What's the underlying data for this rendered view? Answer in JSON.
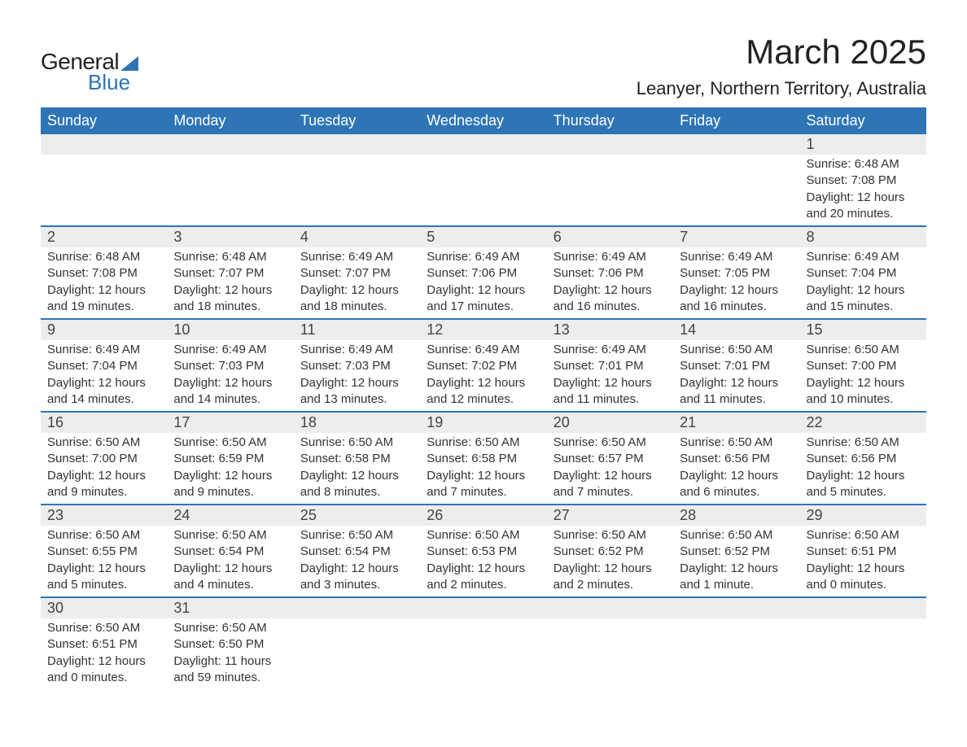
{
  "logo": {
    "word1": "General",
    "word2": "Blue"
  },
  "title": "March 2025",
  "location": "Leanyer, Northern Territory, Australia",
  "colors": {
    "header_bg": "#2e75b6",
    "header_text": "#ffffff",
    "daynum_bg": "#ededed",
    "row_divider": "#2e75b6",
    "text": "#333333",
    "logo_accent": "#2e75b6"
  },
  "weekdays": [
    "Sunday",
    "Monday",
    "Tuesday",
    "Wednesday",
    "Thursday",
    "Friday",
    "Saturday"
  ],
  "weeks": [
    [
      null,
      null,
      null,
      null,
      null,
      null,
      {
        "n": "1",
        "sr": "6:48 AM",
        "ss": "7:08 PM",
        "dl": "12 hours and 20 minutes."
      }
    ],
    [
      {
        "n": "2",
        "sr": "6:48 AM",
        "ss": "7:08 PM",
        "dl": "12 hours and 19 minutes."
      },
      {
        "n": "3",
        "sr": "6:48 AM",
        "ss": "7:07 PM",
        "dl": "12 hours and 18 minutes."
      },
      {
        "n": "4",
        "sr": "6:49 AM",
        "ss": "7:07 PM",
        "dl": "12 hours and 18 minutes."
      },
      {
        "n": "5",
        "sr": "6:49 AM",
        "ss": "7:06 PM",
        "dl": "12 hours and 17 minutes."
      },
      {
        "n": "6",
        "sr": "6:49 AM",
        "ss": "7:06 PM",
        "dl": "12 hours and 16 minutes."
      },
      {
        "n": "7",
        "sr": "6:49 AM",
        "ss": "7:05 PM",
        "dl": "12 hours and 16 minutes."
      },
      {
        "n": "8",
        "sr": "6:49 AM",
        "ss": "7:04 PM",
        "dl": "12 hours and 15 minutes."
      }
    ],
    [
      {
        "n": "9",
        "sr": "6:49 AM",
        "ss": "7:04 PM",
        "dl": "12 hours and 14 minutes."
      },
      {
        "n": "10",
        "sr": "6:49 AM",
        "ss": "7:03 PM",
        "dl": "12 hours and 14 minutes."
      },
      {
        "n": "11",
        "sr": "6:49 AM",
        "ss": "7:03 PM",
        "dl": "12 hours and 13 minutes."
      },
      {
        "n": "12",
        "sr": "6:49 AM",
        "ss": "7:02 PM",
        "dl": "12 hours and 12 minutes."
      },
      {
        "n": "13",
        "sr": "6:49 AM",
        "ss": "7:01 PM",
        "dl": "12 hours and 11 minutes."
      },
      {
        "n": "14",
        "sr": "6:50 AM",
        "ss": "7:01 PM",
        "dl": "12 hours and 11 minutes."
      },
      {
        "n": "15",
        "sr": "6:50 AM",
        "ss": "7:00 PM",
        "dl": "12 hours and 10 minutes."
      }
    ],
    [
      {
        "n": "16",
        "sr": "6:50 AM",
        "ss": "7:00 PM",
        "dl": "12 hours and 9 minutes."
      },
      {
        "n": "17",
        "sr": "6:50 AM",
        "ss": "6:59 PM",
        "dl": "12 hours and 9 minutes."
      },
      {
        "n": "18",
        "sr": "6:50 AM",
        "ss": "6:58 PM",
        "dl": "12 hours and 8 minutes."
      },
      {
        "n": "19",
        "sr": "6:50 AM",
        "ss": "6:58 PM",
        "dl": "12 hours and 7 minutes."
      },
      {
        "n": "20",
        "sr": "6:50 AM",
        "ss": "6:57 PM",
        "dl": "12 hours and 7 minutes."
      },
      {
        "n": "21",
        "sr": "6:50 AM",
        "ss": "6:56 PM",
        "dl": "12 hours and 6 minutes."
      },
      {
        "n": "22",
        "sr": "6:50 AM",
        "ss": "6:56 PM",
        "dl": "12 hours and 5 minutes."
      }
    ],
    [
      {
        "n": "23",
        "sr": "6:50 AM",
        "ss": "6:55 PM",
        "dl": "12 hours and 5 minutes."
      },
      {
        "n": "24",
        "sr": "6:50 AM",
        "ss": "6:54 PM",
        "dl": "12 hours and 4 minutes."
      },
      {
        "n": "25",
        "sr": "6:50 AM",
        "ss": "6:54 PM",
        "dl": "12 hours and 3 minutes."
      },
      {
        "n": "26",
        "sr": "6:50 AM",
        "ss": "6:53 PM",
        "dl": "12 hours and 2 minutes."
      },
      {
        "n": "27",
        "sr": "6:50 AM",
        "ss": "6:52 PM",
        "dl": "12 hours and 2 minutes."
      },
      {
        "n": "28",
        "sr": "6:50 AM",
        "ss": "6:52 PM",
        "dl": "12 hours and 1 minute."
      },
      {
        "n": "29",
        "sr": "6:50 AM",
        "ss": "6:51 PM",
        "dl": "12 hours and 0 minutes."
      }
    ],
    [
      {
        "n": "30",
        "sr": "6:50 AM",
        "ss": "6:51 PM",
        "dl": "12 hours and 0 minutes."
      },
      {
        "n": "31",
        "sr": "6:50 AM",
        "ss": "6:50 PM",
        "dl": "11 hours and 59 minutes."
      },
      null,
      null,
      null,
      null,
      null
    ]
  ],
  "labels": {
    "sunrise": "Sunrise: ",
    "sunset": "Sunset: ",
    "daylight": "Daylight: "
  }
}
